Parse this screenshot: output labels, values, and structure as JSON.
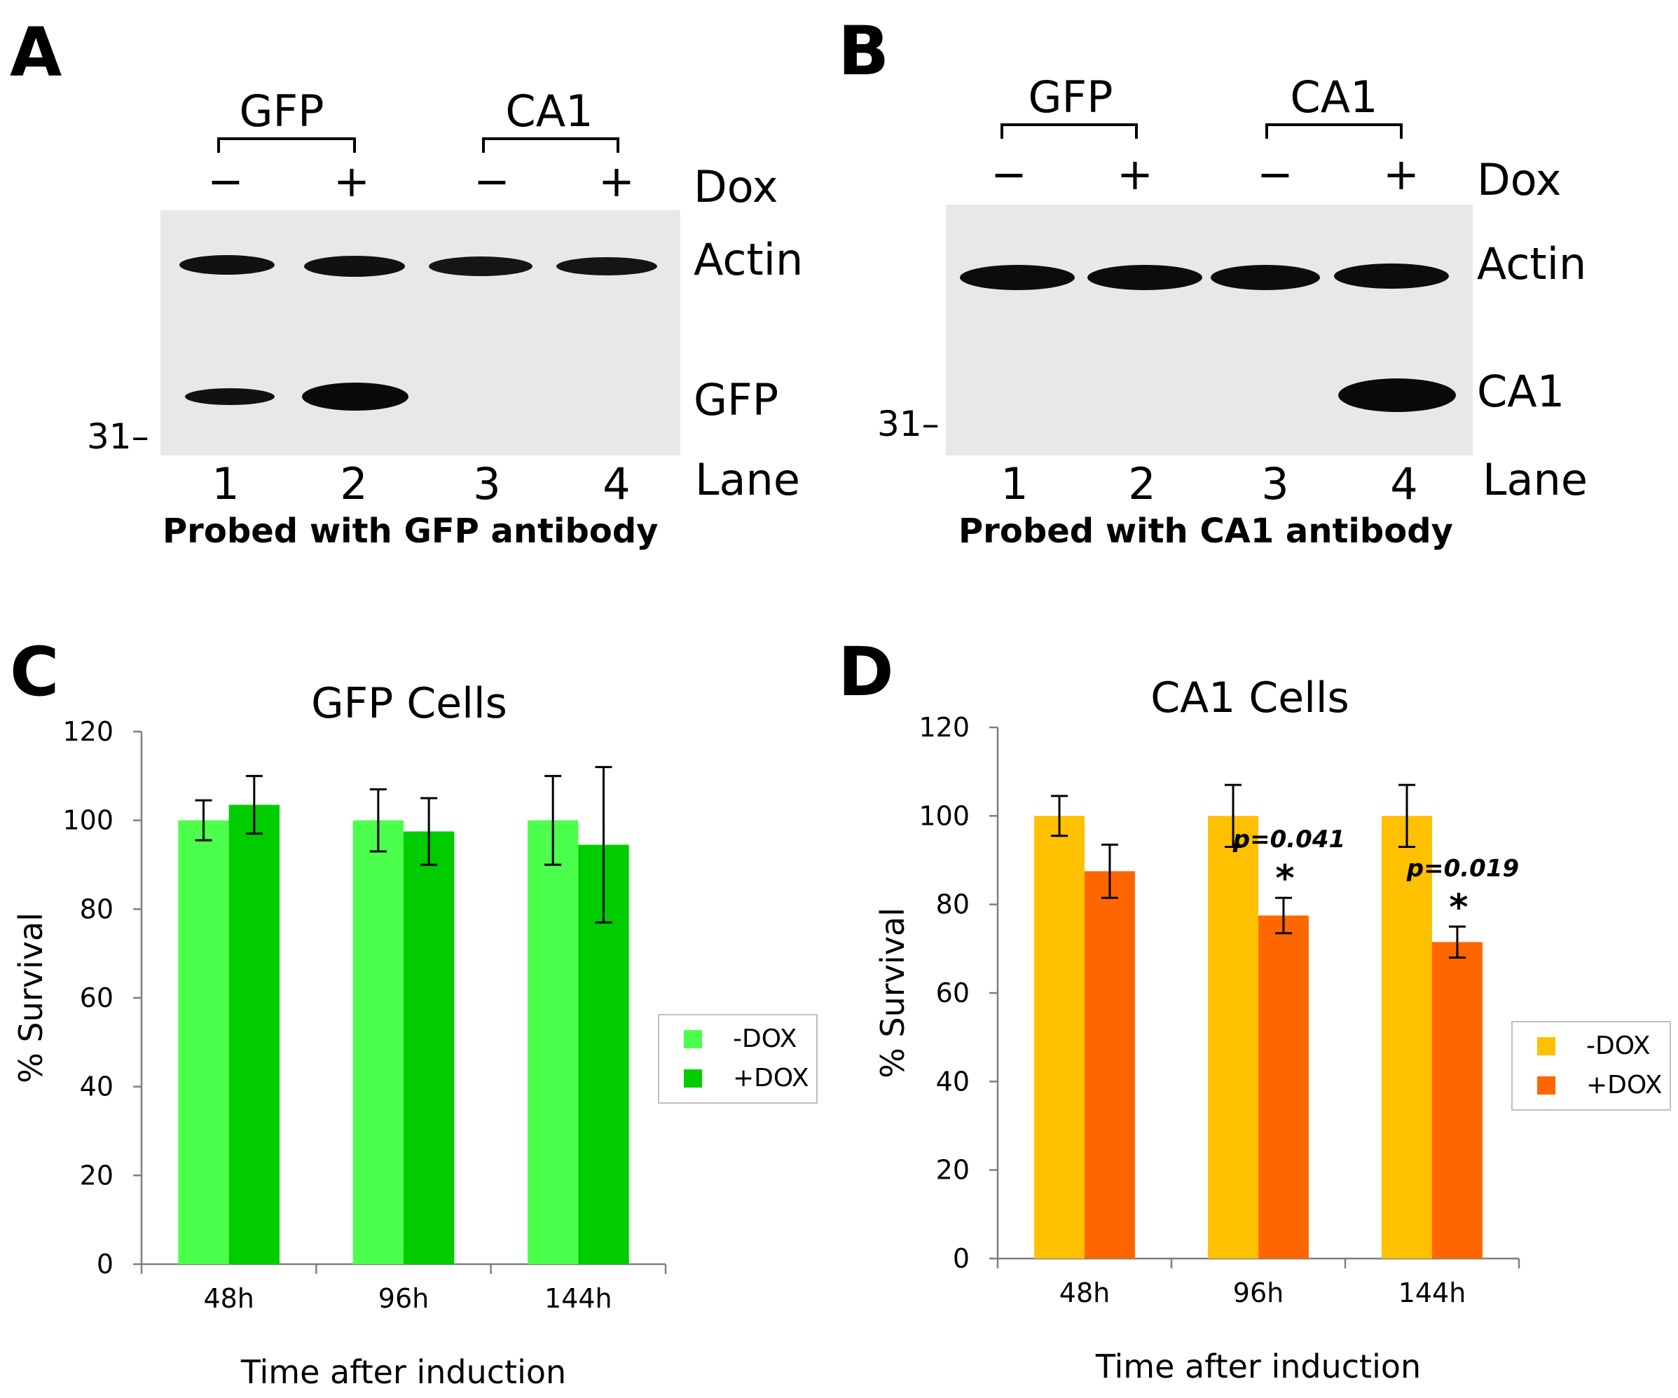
{
  "figure": {
    "panel_a": {
      "letter": "A",
      "groups": [
        "GFP",
        "CA1"
      ],
      "dox_signs": [
        "−",
        "+",
        "−",
        "+"
      ],
      "dox_label": "Dox",
      "band_labels": [
        "Actin",
        "GFP"
      ],
      "marker": "31–",
      "lanes": [
        "1",
        "2",
        "3",
        "4"
      ],
      "lane_label": "Lane",
      "caption": "Probed with GFP antibody"
    },
    "panel_b": {
      "letter": "B",
      "groups": [
        "GFP",
        "CA1"
      ],
      "dox_signs": [
        "−",
        "+",
        "−",
        "+"
      ],
      "dox_label": "Dox",
      "band_labels": [
        "Actin",
        "CA1"
      ],
      "marker": "31–",
      "lanes": [
        "1",
        "2",
        "3",
        "4"
      ],
      "lane_label": "Lane",
      "caption": "Probed with CA1 antibody"
    },
    "panel_c": {
      "letter": "C"
    },
    "panel_d": {
      "letter": "D"
    }
  },
  "chart_data": [
    {
      "type": "bar",
      "panel": "C",
      "title": "GFP Cells",
      "xlabel": "Time after induction",
      "ylabel": "% Survival",
      "categories": [
        "48h",
        "96h",
        "144h"
      ],
      "ylim": [
        0,
        120
      ],
      "yticks": [
        0,
        20,
        40,
        60,
        80,
        100,
        120
      ],
      "series": [
        {
          "name": "-DOX",
          "color": "#4cff4c",
          "values": [
            100,
            100,
            100
          ],
          "errors": [
            4.5,
            7,
            10
          ]
        },
        {
          "name": "+DOX",
          "color": "#00cc00",
          "values": [
            103.5,
            97.5,
            94.5
          ],
          "errors": [
            6.5,
            7.5,
            17.5
          ]
        }
      ],
      "annotations": [],
      "legend": "right"
    },
    {
      "type": "bar",
      "panel": "D",
      "title": "CA1 Cells",
      "xlabel": "Time after induction",
      "ylabel": "% Survival",
      "categories": [
        "48h",
        "96h",
        "144h"
      ],
      "ylim": [
        0,
        120
      ],
      "yticks": [
        0,
        20,
        40,
        60,
        80,
        100,
        120
      ],
      "series": [
        {
          "name": "-DOX",
          "color": "#ffc000",
          "values": [
            100,
            100,
            100
          ],
          "errors": [
            4.5,
            7,
            7
          ]
        },
        {
          "name": "+DOX",
          "color": "#ff6600",
          "values": [
            87.5,
            77.5,
            71.5
          ],
          "errors": [
            6,
            4,
            3.5
          ]
        }
      ],
      "annotations": [
        {
          "category": "96h",
          "pvalue": "p=0.041",
          "star": "*"
        },
        {
          "category": "144h",
          "pvalue": "p=0.019",
          "star": "*"
        }
      ],
      "legend": "right"
    }
  ]
}
